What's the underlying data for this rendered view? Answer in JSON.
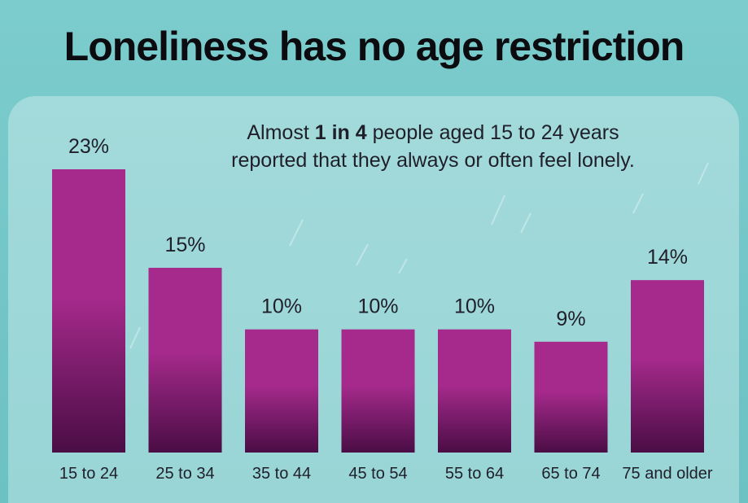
{
  "chart_data": {
    "type": "bar",
    "title": "Loneliness has no age restriction",
    "annotation": {
      "before": "Almost ",
      "bold": "1 in 4",
      "after_line1": " people aged 15 to 24 years",
      "line2": "reported that they always or often feel lonely."
    },
    "categories": [
      "15 to 24",
      "25 to 34",
      "35 to 44",
      "45 to 54",
      "55 to 64",
      "65 to 74",
      "75 and older"
    ],
    "values": [
      23,
      15,
      10,
      10,
      10,
      9,
      14
    ],
    "value_labels": [
      "23%",
      "15%",
      "10%",
      "10%",
      "10%",
      "9%",
      "14%"
    ],
    "unit": "%",
    "ylim": [
      0,
      23
    ],
    "grid": false,
    "legend": "none",
    "colors": {
      "bar_top": "#a62a8c",
      "bar_bottom": "#4a0d45",
      "background": "#6fc3c5",
      "panel": "#a0d8d9",
      "text": "#1f1f2a"
    }
  }
}
